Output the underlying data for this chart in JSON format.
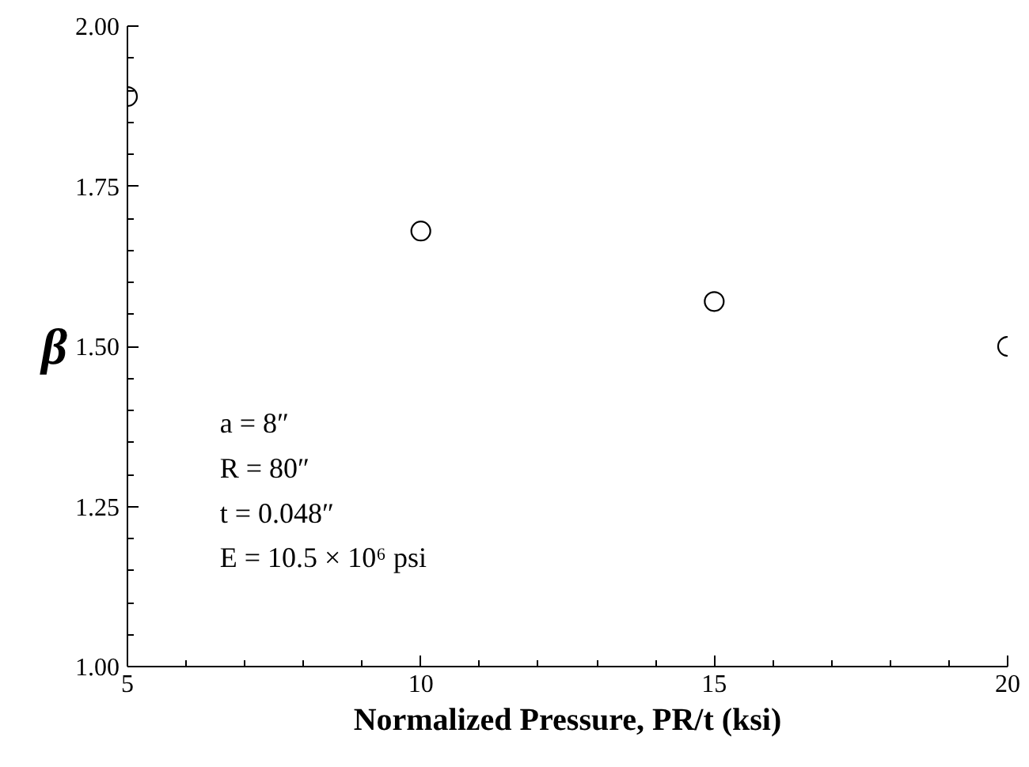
{
  "chart_data": {
    "type": "scatter",
    "xlabel": "Normalized Pressure, PR/t (ksi)",
    "ylabel": "β",
    "x": [
      5,
      10,
      15,
      20
    ],
    "values": [
      1.89,
      1.68,
      1.57,
      1.5
    ],
    "color": "#000000",
    "marker": "circle",
    "xlim": [
      5,
      20
    ],
    "ylim": [
      1.0,
      2.0
    ],
    "xticks": [
      5,
      {
        "value": 6,
        "label": null
      },
      {
        "value": 7,
        "label": null
      },
      {
        "value": 8,
        "label": null
      },
      {
        "value": 9,
        "label": null
      },
      10,
      {
        "value": 11,
        "label": null
      },
      {
        "value": 12,
        "label": null
      },
      {
        "value": 13,
        "label": null
      },
      {
        "value": 14,
        "label": null
      },
      15,
      {
        "value": 16,
        "label": null
      },
      {
        "value": 17,
        "label": null
      },
      {
        "value": 18,
        "label": null
      },
      {
        "value": 19,
        "label": null
      },
      20
    ],
    "yticks": [
      {
        "value": 1.0,
        "label": "1.00"
      },
      {
        "value": 1.05,
        "label": null
      },
      {
        "value": 1.1,
        "label": null
      },
      {
        "value": 1.15,
        "label": null
      },
      {
        "value": 1.2,
        "label": null
      },
      {
        "value": 1.25,
        "label": "1.25"
      },
      {
        "value": 1.3,
        "label": null
      },
      {
        "value": 1.35,
        "label": null
      },
      {
        "value": 1.4,
        "label": null
      },
      {
        "value": 1.45,
        "label": null
      },
      {
        "value": 1.5,
        "label": "1.50"
      },
      {
        "value": 1.55,
        "label": null
      },
      {
        "value": 1.6,
        "label": null
      },
      {
        "value": 1.65,
        "label": null
      },
      {
        "value": 1.7,
        "label": null
      },
      {
        "value": 1.75,
        "label": "1.75"
      },
      {
        "value": 1.8,
        "label": null
      },
      {
        "value": 1.85,
        "label": null
      },
      {
        "value": 1.9,
        "label": null
      },
      {
        "value": 1.95,
        "label": null
      },
      {
        "value": 2.0,
        "label": "2.00"
      }
    ],
    "annotations": [
      "a = 8″",
      "R = 80″",
      "t = 0.048″",
      "E = 10.5 × 10⁶ psi"
    ]
  }
}
